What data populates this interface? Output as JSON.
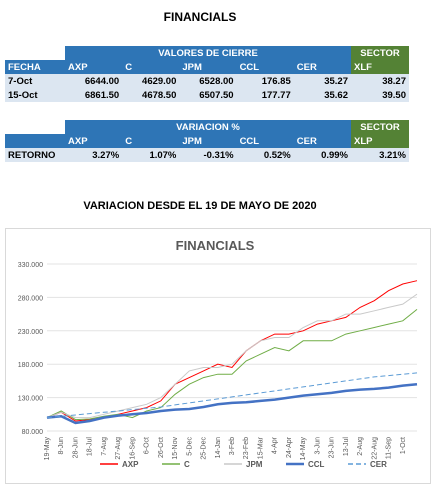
{
  "header": {
    "title": "FINANCIALS"
  },
  "table1": {
    "group": "VALORES DE CIERRE",
    "sector": "SECTOR",
    "columns": [
      "FECHA",
      "AXP",
      "C",
      "JPM",
      "CCL",
      "CER",
      "XLF"
    ],
    "rows": [
      [
        "7-Oct",
        "6644.00",
        "4629.00",
        "6528.00",
        "176.85",
        "35.27",
        "38.27"
      ],
      [
        "15-Oct",
        "6861.50",
        "4678.50",
        "6507.50",
        "177.77",
        "35.62",
        "39.50"
      ]
    ]
  },
  "table2": {
    "group": "VARIACION %",
    "sector": "SECTOR",
    "columns": [
      "AXP",
      "C",
      "JPM",
      "CCL",
      "CER",
      "XLP"
    ],
    "rows": [
      [
        "RETORNO",
        "3.27%",
        "1.07%",
        "-0.31%",
        "0.52%",
        "0.99%",
        "3.21%"
      ]
    ]
  },
  "subtitle": "VARIACION DESDE EL 19 DE MAYO DE 2020",
  "chart_data": {
    "type": "line",
    "title": "FINANCIALS",
    "categories": [
      "19-May",
      "8-Jun",
      "28-Jun",
      "18-Jul",
      "7-Aug",
      "27-Aug",
      "16-Sep",
      "6-Oct",
      "26-Oct",
      "15-Nov",
      "5-Dec",
      "25-Dec",
      "14-Jan",
      "3-Feb",
      "23-Feb",
      "15-Mar",
      "4-Apr",
      "24-Apr",
      "14-May",
      "3-Jun",
      "23-Jun",
      "13-Jul",
      "2-Aug",
      "22-Aug",
      "11-Sep",
      "1-Oct",
      null
    ],
    "series": [
      {
        "name": "AXP",
        "color": "#ff0000",
        "values": [
          100,
          108,
          95,
          97,
          100,
          105,
          110,
          115,
          125,
          150,
          160,
          170,
          180,
          175,
          200,
          215,
          225,
          225,
          230,
          240,
          245,
          250,
          265,
          275,
          290,
          300,
          305
        ]
      },
      {
        "name": "C",
        "color": "#70ad47",
        "values": [
          100,
          110,
          97,
          98,
          102,
          105,
          100,
          110,
          115,
          135,
          150,
          160,
          165,
          165,
          185,
          195,
          205,
          200,
          215,
          215,
          215,
          225,
          230,
          235,
          240,
          245,
          262
        ]
      },
      {
        "name": "JPM",
        "color": "#c9c9c9",
        "values": [
          100,
          108,
          100,
          100,
          105,
          110,
          115,
          120,
          130,
          150,
          170,
          175,
          175,
          180,
          200,
          215,
          220,
          220,
          235,
          245,
          245,
          255,
          255,
          260,
          265,
          270,
          285
        ]
      },
      {
        "name": "CCL",
        "color": "#4472c4",
        "values": [
          100,
          102,
          92,
          95,
          100,
          103,
          105,
          107,
          110,
          112,
          113,
          116,
          120,
          122,
          123,
          125,
          127,
          130,
          133,
          135,
          137,
          140,
          142,
          143,
          145,
          148,
          150
        ]
      },
      {
        "name": "CER",
        "color": "#5b9bd5",
        "dashed": true,
        "values": [
          100,
          102,
          104,
          106,
          108,
          110,
          112,
          114,
          116,
          119,
          122,
          125,
          128,
          131,
          134,
          137,
          140,
          143,
          146,
          149,
          152,
          155,
          158,
          161,
          163,
          165,
          167
        ]
      }
    ],
    "ylim": [
      80,
      330
    ],
    "yticks": [
      {
        "value": 80,
        "label": "80.000"
      },
      {
        "value": 130,
        "label": "130.000"
      },
      {
        "value": 180,
        "label": "180.000"
      },
      {
        "value": 230,
        "label": "230.000"
      },
      {
        "value": 280,
        "label": "280.000"
      },
      {
        "value": 330,
        "label": "330.000"
      }
    ],
    "grid": true
  }
}
